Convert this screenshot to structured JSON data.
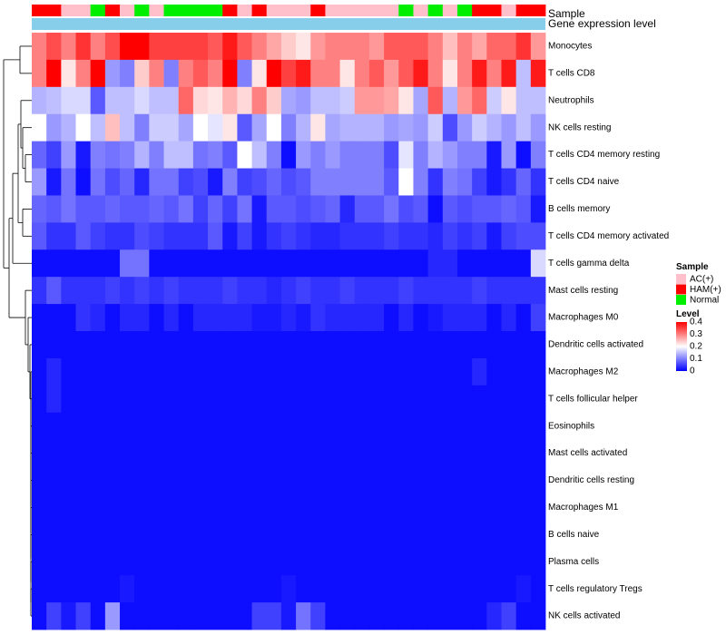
{
  "chart_data": {
    "type": "heatmap",
    "title": "",
    "xlabel": "",
    "ylabel": "",
    "annotation_rows": [
      {
        "name": "Sample",
        "label": "Sample"
      },
      {
        "name": "Gene expression level",
        "label": "Gene expression level"
      }
    ],
    "rows": [
      "Monocytes",
      "T cells CD8",
      "Neutrophils",
      "NK cells resting",
      "T cells CD4 memory resting",
      "T cells CD4 naive",
      "B cells memory",
      "T cells CD4 memory activated",
      "T cells gamma delta",
      "Mast cells resting",
      "Macrophages M0",
      "Dendritic cells activated",
      "Macrophages M2",
      "T cells follicular helper",
      "Eosinophils",
      "Mast cells activated",
      "Dendritic cells resting",
      "Macrophages M1",
      "B cells naive",
      "Plasma cells",
      "T cells regulatory  Tregs",
      "NK cells activated"
    ],
    "sample_groups": [
      "HAM(+)",
      "HAM(+)",
      "AC(+)",
      "AC(+)",
      "Normal",
      "HAM(+)",
      "AC(+)",
      "Normal",
      "AC(+)",
      "Normal",
      "Normal",
      "Normal",
      "Normal",
      "HAM(+)",
      "AC(+)",
      "HAM(+)",
      "AC(+)",
      "AC(+)",
      "AC(+)",
      "HAM(+)",
      "AC(+)",
      "AC(+)",
      "AC(+)",
      "AC(+)",
      "AC(+)",
      "Normal",
      "AC(+)",
      "Normal",
      "AC(+)",
      "Normal",
      "HAM(+)",
      "HAM(+)",
      "AC(+)",
      "HAM(+)",
      "HAM(+)"
    ],
    "values": [
      [
        0.3,
        0.34,
        0.3,
        0.36,
        0.3,
        0.34,
        0.4,
        0.4,
        0.35,
        0.35,
        0.35,
        0.35,
        0.33,
        0.38,
        0.33,
        0.3,
        0.27,
        0.24,
        0.22,
        0.28,
        0.3,
        0.3,
        0.3,
        0.28,
        0.33,
        0.33,
        0.33,
        0.3,
        0.25,
        0.3,
        0.27,
        0.32,
        0.32,
        0.36,
        0.28
      ],
      [
        0.3,
        0.4,
        0.22,
        0.3,
        0.4,
        0.12,
        0.1,
        0.24,
        0.3,
        0.1,
        0.3,
        0.33,
        0.3,
        0.4,
        0.1,
        0.22,
        0.4,
        0.35,
        0.38,
        0.3,
        0.3,
        0.22,
        0.3,
        0.33,
        0.28,
        0.33,
        0.38,
        0.3,
        0.22,
        0.3,
        0.38,
        0.3,
        0.38,
        0.15,
        0.38
      ],
      [
        0.14,
        0.15,
        0.17,
        0.17,
        0.07,
        0.15,
        0.15,
        0.17,
        0.15,
        0.15,
        0.32,
        0.23,
        0.22,
        0.26,
        0.23,
        0.3,
        0.24,
        0.13,
        0.12,
        0.15,
        0.15,
        0.16,
        0.28,
        0.28,
        0.27,
        0.22,
        0.13,
        0.33,
        0.14,
        0.28,
        0.32,
        0.16,
        0.22,
        0.15,
        0.15
      ],
      [
        0.2,
        0.12,
        0.14,
        0.2,
        0.15,
        0.25,
        0.15,
        0.1,
        0.16,
        0.16,
        0.13,
        0.2,
        0.18,
        0.22,
        0.07,
        0.13,
        0.2,
        0.1,
        0.14,
        0.22,
        0.13,
        0.14,
        0.14,
        0.14,
        0.12,
        0.13,
        0.12,
        0.16,
        0.06,
        0.12,
        0.16,
        0.14,
        0.12,
        0.15,
        0.12
      ],
      [
        0.08,
        0.05,
        0.12,
        0.02,
        0.1,
        0.09,
        0.1,
        0.14,
        0.1,
        0.15,
        0.15,
        0.09,
        0.1,
        0.07,
        0.2,
        0.15,
        0.1,
        0.01,
        0.12,
        0.1,
        0.12,
        0.1,
        0.1,
        0.1,
        0.06,
        0.18,
        0.1,
        0.14,
        0.12,
        0.1,
        0.1,
        0.02,
        0.12,
        0.01,
        0.1
      ],
      [
        0.12,
        0.02,
        0.09,
        0.01,
        0.09,
        0.06,
        0.08,
        0.03,
        0.09,
        0.09,
        0.05,
        0.06,
        0.02,
        0.1,
        0.05,
        0.06,
        0.08,
        0.06,
        0.07,
        0.1,
        0.1,
        0.1,
        0.1,
        0.1,
        0.07,
        0.2,
        0.1,
        0.04,
        0.1,
        0.09,
        0.05,
        0.02,
        0.04,
        0.08,
        0.04
      ],
      [
        0.08,
        0.07,
        0.09,
        0.07,
        0.07,
        0.08,
        0.07,
        0.07,
        0.08,
        0.07,
        0.09,
        0.05,
        0.08,
        0.05,
        0.09,
        0.02,
        0.07,
        0.07,
        0.06,
        0.07,
        0.08,
        0.03,
        0.07,
        0.07,
        0.09,
        0.06,
        0.07,
        0.01,
        0.07,
        0.06,
        0.07,
        0.07,
        0.08,
        0.07,
        0.02
      ],
      [
        0.07,
        0.04,
        0.04,
        0.07,
        0.05,
        0.04,
        0.04,
        0.06,
        0.05,
        0.04,
        0.04,
        0.04,
        0.07,
        0.02,
        0.05,
        0.02,
        0.04,
        0.05,
        0.04,
        0.03,
        0.03,
        0.04,
        0.04,
        0.04,
        0.05,
        0.04,
        0.04,
        0.03,
        0.05,
        0.04,
        0.05,
        0.02,
        0.05,
        0.06,
        0.06
      ],
      [
        0.01,
        0.01,
        0.01,
        0.01,
        0.01,
        0.01,
        0.09,
        0.09,
        0.01,
        0.01,
        0.01,
        0.01,
        0.01,
        0.01,
        0.01,
        0.01,
        0.01,
        0.01,
        0.01,
        0.01,
        0.01,
        0.01,
        0.01,
        0.01,
        0.01,
        0.01,
        0.01,
        0.03,
        0.03,
        0.01,
        0.01,
        0.01,
        0.01,
        0.01,
        0.17
      ],
      [
        0.04,
        0.07,
        0.04,
        0.04,
        0.04,
        0.05,
        0.04,
        0.05,
        0.04,
        0.05,
        0.04,
        0.04,
        0.04,
        0.05,
        0.04,
        0.04,
        0.03,
        0.04,
        0.05,
        0.04,
        0.04,
        0.05,
        0.04,
        0.04,
        0.04,
        0.05,
        0.04,
        0.04,
        0.04,
        0.04,
        0.05,
        0.04,
        0.04,
        0.04,
        0.04
      ],
      [
        0.01,
        0.01,
        0.01,
        0.04,
        0.03,
        0.01,
        0.03,
        0.03,
        0.01,
        0.03,
        0.01,
        0.03,
        0.03,
        0.03,
        0.03,
        0.02,
        0.02,
        0.03,
        0.02,
        0.04,
        0.03,
        0.03,
        0.03,
        0.03,
        0.01,
        0.03,
        0.01,
        0.02,
        0.03,
        0.03,
        0.03,
        0.01,
        0.03,
        0.01,
        0.05
      ],
      [
        0.01,
        0.01,
        0.01,
        0.01,
        0.01,
        0.01,
        0.01,
        0.01,
        0.01,
        0.01,
        0.01,
        0.01,
        0.01,
        0.01,
        0.01,
        0.01,
        0.01,
        0.01,
        0.01,
        0.01,
        0.01,
        0.01,
        0.01,
        0.01,
        0.01,
        0.01,
        0.01,
        0.01,
        0.01,
        0.01,
        0.01,
        0.01,
        0.01,
        0.01,
        0.01
      ],
      [
        0.01,
        0.03,
        0.01,
        0.01,
        0.01,
        0.01,
        0.01,
        0.01,
        0.01,
        0.01,
        0.01,
        0.01,
        0.01,
        0.01,
        0.01,
        0.01,
        0.01,
        0.01,
        0.01,
        0.01,
        0.01,
        0.01,
        0.01,
        0.01,
        0.01,
        0.01,
        0.01,
        0.01,
        0.01,
        0.01,
        0.03,
        0.01,
        0.01,
        0.01,
        0.01
      ],
      [
        0.01,
        0.03,
        0.01,
        0.01,
        0.01,
        0.01,
        0.01,
        0.01,
        0.01,
        0.01,
        0.01,
        0.01,
        0.01,
        0.01,
        0.01,
        0.01,
        0.01,
        0.01,
        0.01,
        0.01,
        0.01,
        0.01,
        0.01,
        0.01,
        0.01,
        0.01,
        0.01,
        0.01,
        0.01,
        0.01,
        0.01,
        0.01,
        0.01,
        0.01,
        0.01
      ],
      [
        0.01,
        0.01,
        0.01,
        0.01,
        0.01,
        0.01,
        0.01,
        0.01,
        0.01,
        0.01,
        0.01,
        0.01,
        0.01,
        0.01,
        0.01,
        0.01,
        0.01,
        0.01,
        0.01,
        0.01,
        0.01,
        0.01,
        0.01,
        0.01,
        0.01,
        0.01,
        0.01,
        0.01,
        0.01,
        0.01,
        0.01,
        0.01,
        0.01,
        0.01,
        0.01
      ],
      [
        0.01,
        0.01,
        0.01,
        0.01,
        0.01,
        0.01,
        0.01,
        0.01,
        0.01,
        0.01,
        0.01,
        0.01,
        0.01,
        0.01,
        0.01,
        0.01,
        0.01,
        0.01,
        0.01,
        0.01,
        0.01,
        0.01,
        0.01,
        0.01,
        0.01,
        0.01,
        0.01,
        0.01,
        0.01,
        0.01,
        0.01,
        0.01,
        0.01,
        0.01,
        0.01
      ],
      [
        0.01,
        0.01,
        0.01,
        0.01,
        0.01,
        0.01,
        0.01,
        0.01,
        0.01,
        0.01,
        0.01,
        0.01,
        0.01,
        0.01,
        0.01,
        0.01,
        0.01,
        0.01,
        0.01,
        0.01,
        0.01,
        0.01,
        0.01,
        0.01,
        0.01,
        0.01,
        0.01,
        0.01,
        0.01,
        0.01,
        0.01,
        0.01,
        0.01,
        0.01,
        0.01
      ],
      [
        0.01,
        0.01,
        0.01,
        0.01,
        0.01,
        0.01,
        0.01,
        0.01,
        0.01,
        0.01,
        0.01,
        0.01,
        0.01,
        0.01,
        0.01,
        0.01,
        0.01,
        0.01,
        0.01,
        0.01,
        0.01,
        0.01,
        0.01,
        0.01,
        0.01,
        0.01,
        0.01,
        0.01,
        0.01,
        0.01,
        0.01,
        0.01,
        0.01,
        0.01,
        0.01
      ],
      [
        0.01,
        0.01,
        0.01,
        0.01,
        0.01,
        0.01,
        0.01,
        0.01,
        0.01,
        0.01,
        0.01,
        0.01,
        0.01,
        0.01,
        0.01,
        0.01,
        0.01,
        0.01,
        0.01,
        0.01,
        0.01,
        0.01,
        0.01,
        0.01,
        0.01,
        0.01,
        0.01,
        0.01,
        0.01,
        0.01,
        0.01,
        0.01,
        0.01,
        0.01,
        0.01
      ],
      [
        0.01,
        0.01,
        0.01,
        0.01,
        0.01,
        0.01,
        0.01,
        0.01,
        0.01,
        0.01,
        0.01,
        0.01,
        0.01,
        0.01,
        0.01,
        0.01,
        0.01,
        0.01,
        0.01,
        0.01,
        0.01,
        0.01,
        0.01,
        0.01,
        0.01,
        0.01,
        0.01,
        0.01,
        0.01,
        0.01,
        0.01,
        0.01,
        0.01,
        0.01,
        0.01
      ],
      [
        0.01,
        0.01,
        0.01,
        0.01,
        0.01,
        0.01,
        0.02,
        0.01,
        0.01,
        0.01,
        0.01,
        0.01,
        0.01,
        0.01,
        0.01,
        0.01,
        0.01,
        0.02,
        0.01,
        0.01,
        0.01,
        0.01,
        0.01,
        0.01,
        0.01,
        0.01,
        0.01,
        0.01,
        0.01,
        0.01,
        0.01,
        0.01,
        0.01,
        0.02,
        0.01
      ],
      [
        0.01,
        0.05,
        0.02,
        0.05,
        0.01,
        0.12,
        0.01,
        0.01,
        0.01,
        0.01,
        0.01,
        0.01,
        0.01,
        0.01,
        0.01,
        0.05,
        0.05,
        0.02,
        0.09,
        0.05,
        0.01,
        0.01,
        0.01,
        0.01,
        0.01,
        0.01,
        0.01,
        0.01,
        0.01,
        0.01,
        0.01,
        0.03,
        0.05,
        0.01,
        0.01
      ]
    ],
    "color_scale": {
      "min": 0,
      "mid": 0.2,
      "max": 0.4,
      "low_color": "#0000ff",
      "mid_color": "#ffffff",
      "high_color": "#ff0000"
    },
    "expression_bar_color": "#87ceeb",
    "legends": {
      "sample": {
        "title": "Sample",
        "items": [
          {
            "label": "AC(+)",
            "color": "#ffc0cb"
          },
          {
            "label": "HAM(+)",
            "color": "#ff0000"
          },
          {
            "label": "Normal",
            "color": "#00ee00"
          }
        ]
      },
      "level": {
        "title": "Level",
        "ticks": [
          {
            "label": "0.4",
            "value": 0.4
          },
          {
            "label": "0.3",
            "value": 0.3
          },
          {
            "label": "0.2",
            "value": 0.2
          },
          {
            "label": "0.1",
            "value": 0.1
          },
          {
            "label": "0",
            "value": 0
          }
        ]
      }
    }
  }
}
